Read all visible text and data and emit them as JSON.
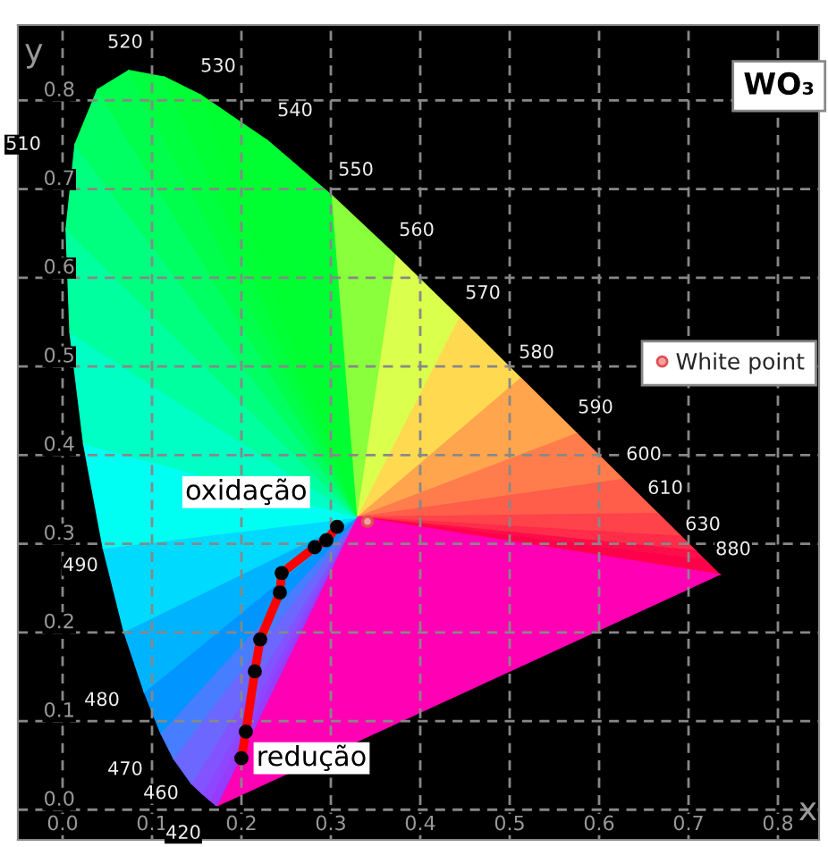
{
  "chart_data": {
    "type": "line",
    "title": "WO₃",
    "xlabel": "x",
    "ylabel": "y",
    "xlim": [
      -0.05,
      0.846
    ],
    "ylim": [
      -0.034,
      0.885
    ],
    "xticks": [
      {
        "value": 0.0,
        "label": "0.0"
      },
      {
        "value": 0.1,
        "label": "0.1"
      },
      {
        "value": 0.2,
        "label": "0.2"
      },
      {
        "value": 0.3,
        "label": "0.3"
      },
      {
        "value": 0.4,
        "label": "0.4"
      },
      {
        "value": 0.5,
        "label": "0.5"
      },
      {
        "value": 0.6,
        "label": "0.6"
      },
      {
        "value": 0.7,
        "label": "0.7"
      },
      {
        "value": 0.8,
        "label": "0.8"
      }
    ],
    "yticks": [
      {
        "value": 0.0,
        "label": "0.0"
      },
      {
        "value": 0.1,
        "label": "0.1"
      },
      {
        "value": 0.2,
        "label": "0.2"
      },
      {
        "value": 0.3,
        "label": "0.3"
      },
      {
        "value": 0.4,
        "label": "0.4"
      },
      {
        "value": 0.5,
        "label": "0.5"
      },
      {
        "value": 0.6,
        "label": "0.6"
      },
      {
        "value": 0.7,
        "label": "0.7"
      },
      {
        "value": 0.8,
        "label": "0.8"
      }
    ],
    "grid": true,
    "legend": "right",
    "marker": "circle",
    "line_style": "solid",
    "series": [
      {
        "color": "#ff0000",
        "x": [
          0.2,
          0.205,
          0.215,
          0.221,
          0.243,
          0.245,
          0.282,
          0.295,
          0.307
        ],
        "values": [
          0.058,
          0.088,
          0.156,
          0.192,
          0.245,
          0.267,
          0.296,
          0.304,
          0.319
        ]
      },
      {
        "type": "scatter",
        "name": "White point",
        "color": "#e05050",
        "x": [
          0.341
        ],
        "values": [
          0.325
        ]
      }
    ],
    "annotations": [
      "520",
      "530",
      "540",
      "550",
      "560",
      "570",
      "580",
      "590",
      "600",
      "610",
      "630",
      "880",
      "510",
      "490",
      "480",
      "470",
      "460",
      "420",
      {
        "text": "oxidação",
        "x": 0.307,
        "y": 0.319
      },
      {
        "text": "redução",
        "x": 0.2,
        "y": 0.058
      }
    ]
  }
}
